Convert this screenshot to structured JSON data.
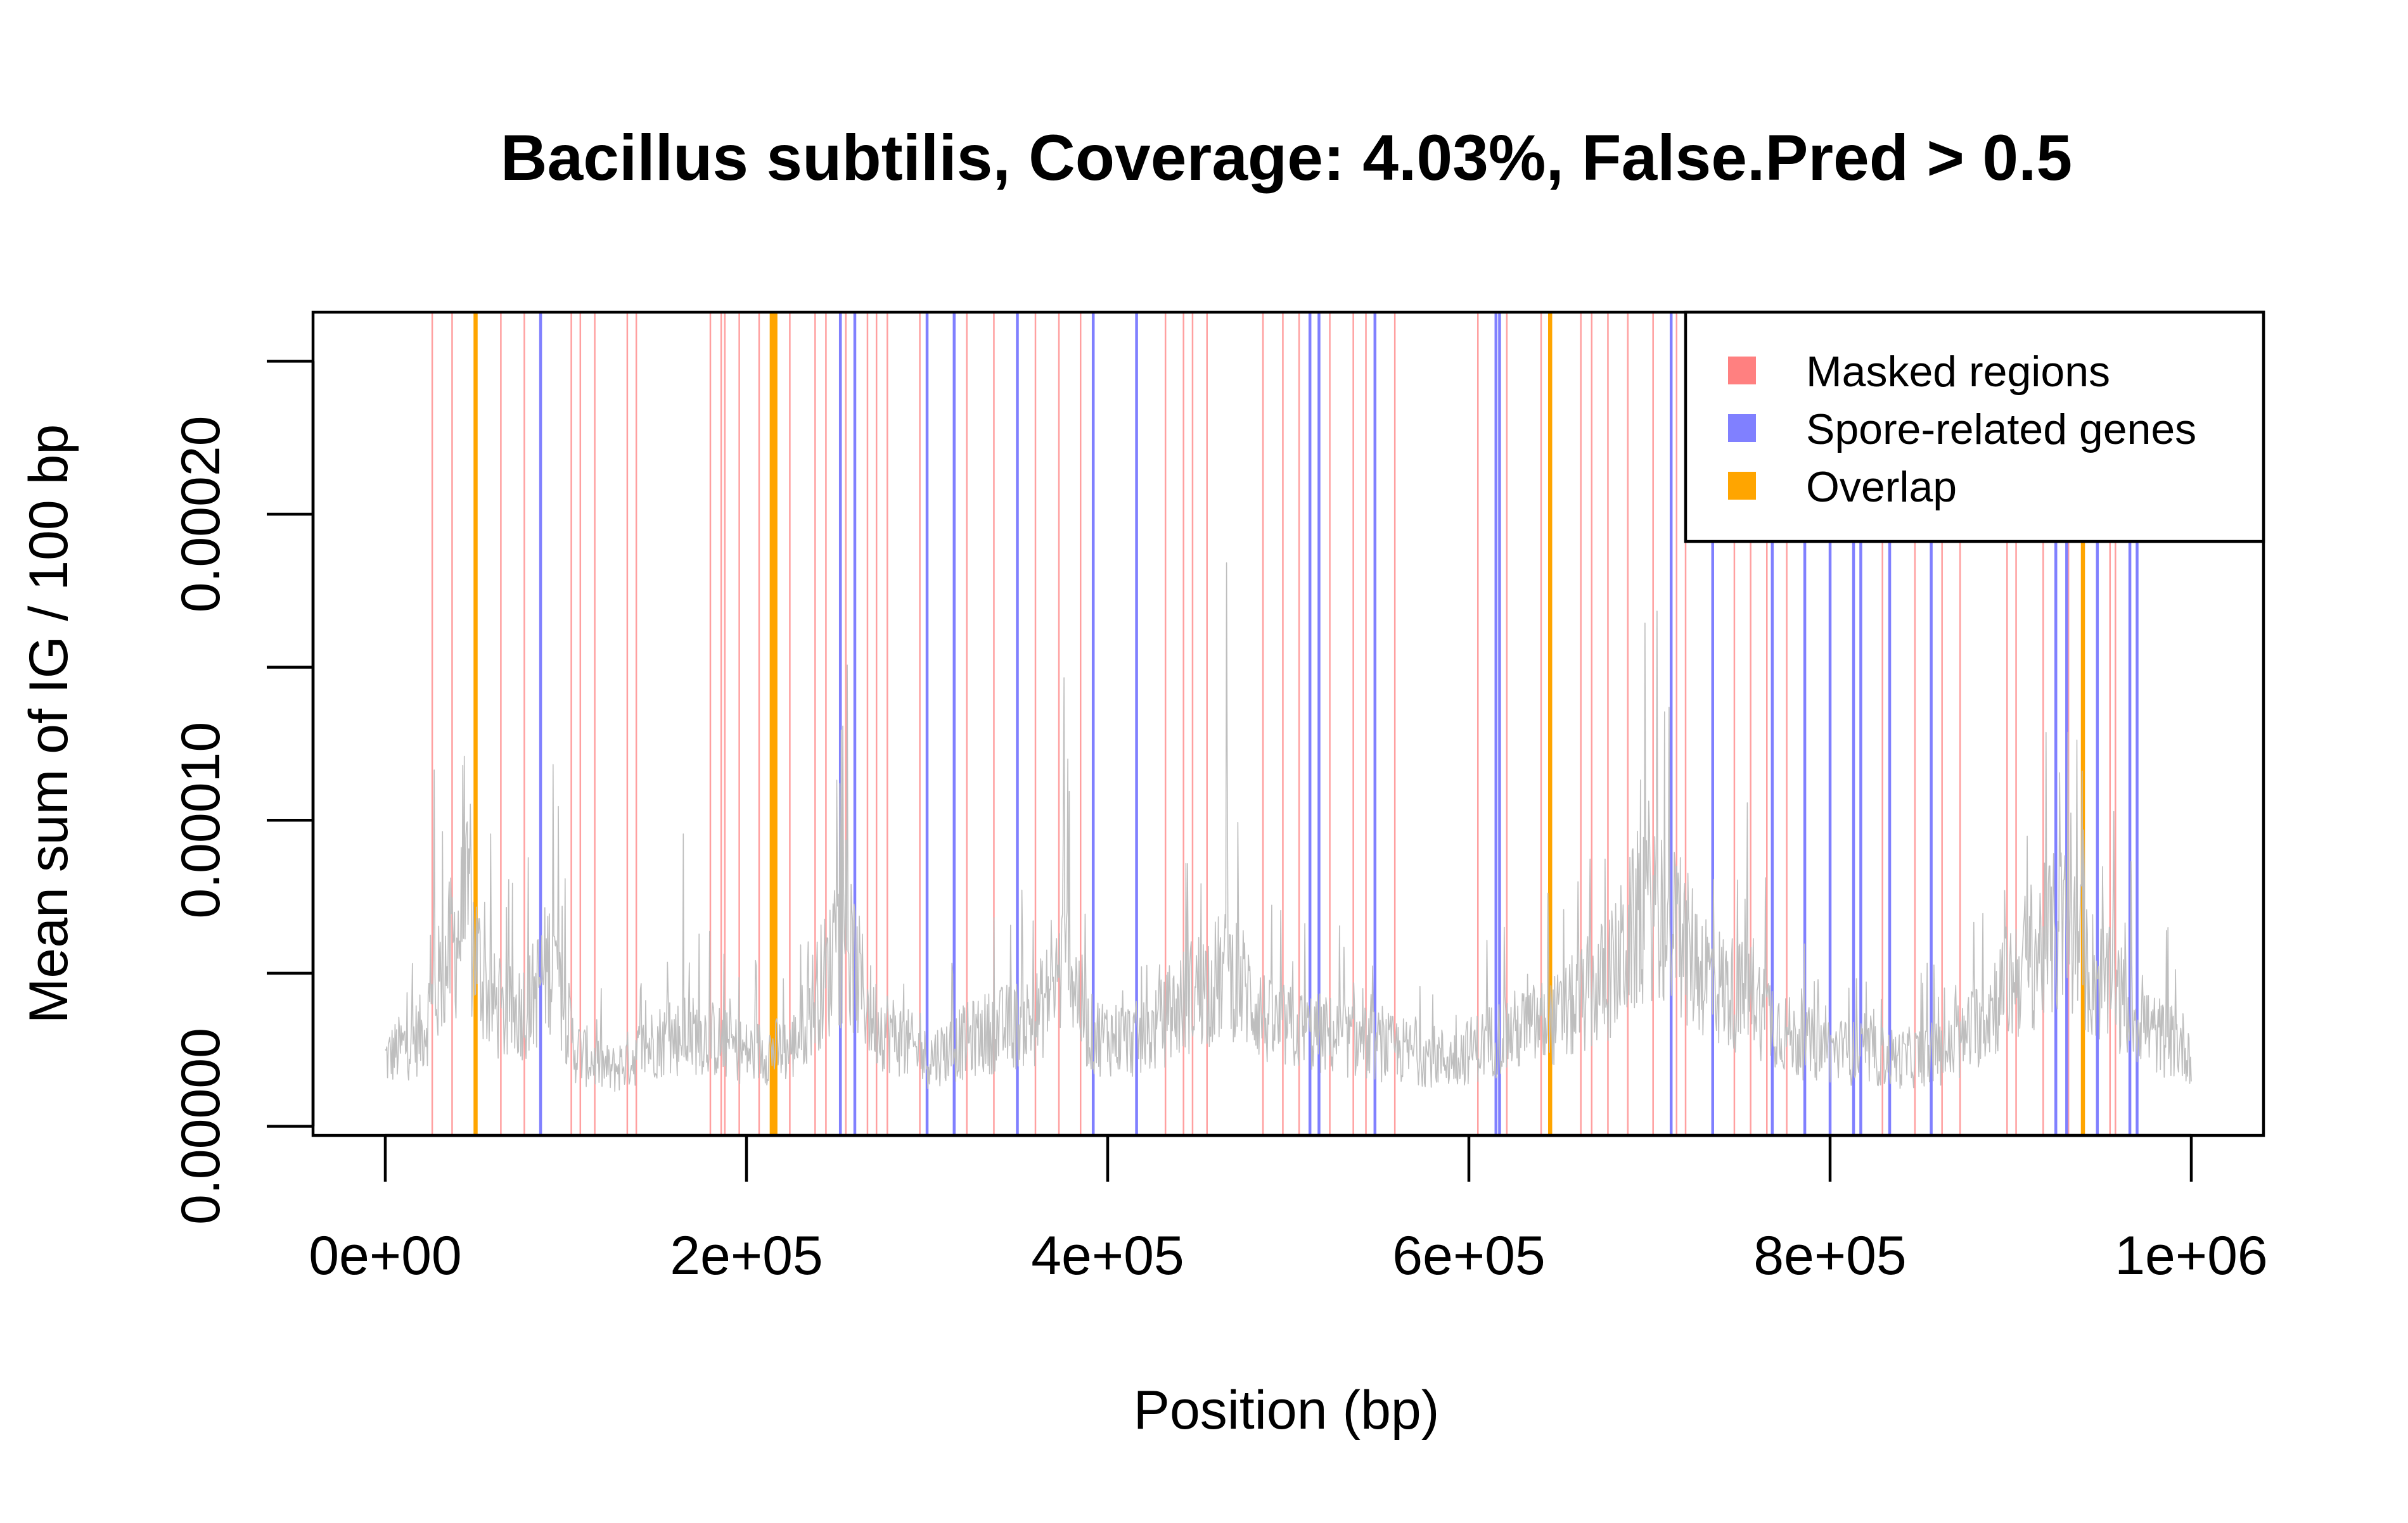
{
  "chart_data": {
    "type": "line",
    "title": "Bacillus subtilis, Coverage: 4.03%, False.Pred > 0.5",
    "xlabel": "Position (bp)",
    "ylabel": "Mean sum of IG / 100 bp",
    "xlim": [
      -40000,
      1040000
    ],
    "ylim": [
      -3e-06,
      0.000266
    ],
    "x_ticks": [
      0,
      200000,
      400000,
      600000,
      800000,
      1000000
    ],
    "x_tick_labels": [
      "0e+00",
      "2e+05",
      "4e+05",
      "6e+05",
      "8e+05",
      "1e+06"
    ],
    "y_ticks": [
      0,
      5e-05,
      0.0001,
      0.00015,
      0.0002,
      0.00025
    ],
    "y_tick_labels": [
      "0.00000",
      "",
      "0.00010",
      "",
      "0.00020",
      ""
    ],
    "grid": false,
    "legend": {
      "placement": "top-right",
      "entries": [
        {
          "label": "Masked regions",
          "color": "#ff8080"
        },
        {
          "label": "Spore-related genes",
          "color": "#8080ff"
        },
        {
          "label": "Overlap",
          "color": "#ffa500"
        }
      ]
    },
    "signal": {
      "color": "#bebebe",
      "profile": [
        [
          0,
          2.2e-05
        ],
        [
          20000,
          3e-05
        ],
        [
          35000,
          5.5e-05
        ],
        [
          45000,
          7e-05
        ],
        [
          55000,
          4.5e-05
        ],
        [
          65000,
          3.5e-05
        ],
        [
          80000,
          4e-05
        ],
        [
          92000,
          5.5e-05
        ],
        [
          105000,
          2.5e-05
        ],
        [
          125000,
          1.8e-05
        ],
        [
          150000,
          2.8e-05
        ],
        [
          175000,
          3e-05
        ],
        [
          200000,
          2.4e-05
        ],
        [
          225000,
          2.5e-05
        ],
        [
          240000,
          4.5e-05
        ],
        [
          255000,
          6e-05
        ],
        [
          270000,
          3.5e-05
        ],
        [
          300000,
          2.2e-05
        ],
        [
          330000,
          3e-05
        ],
        [
          360000,
          3.5e-05
        ],
        [
          378000,
          5.5e-05
        ],
        [
          390000,
          3e-05
        ],
        [
          420000,
          2.8e-05
        ],
        [
          450000,
          4.5e-05
        ],
        [
          470000,
          5e-05
        ],
        [
          490000,
          3.3e-05
        ],
        [
          520000,
          3e-05
        ],
        [
          560000,
          2.5e-05
        ],
        [
          590000,
          2.2e-05
        ],
        [
          620000,
          3e-05
        ],
        [
          650000,
          3.5e-05
        ],
        [
          680000,
          5e-05
        ],
        [
          700000,
          7.5e-05
        ],
        [
          720000,
          5.8e-05
        ],
        [
          740000,
          4.5e-05
        ],
        [
          760000,
          4e-05
        ],
        [
          780000,
          2.8e-05
        ],
        [
          810000,
          2.4e-05
        ],
        [
          840000,
          2.2e-05
        ],
        [
          870000,
          2.5e-05
        ],
        [
          890000,
          4e-05
        ],
        [
          910000,
          5.5e-05
        ],
        [
          930000,
          6.5e-05
        ],
        [
          945000,
          5e-05
        ],
        [
          960000,
          4.2e-05
        ],
        [
          980000,
          3e-05
        ],
        [
          1000000,
          2.5e-05
        ]
      ],
      "peaks": [
        [
          27000,
          0.000132
        ],
        [
          47000,
          0.000122
        ],
        [
          93000,
          0.00013
        ],
        [
          165000,
          9.7e-05
        ],
        [
          248000,
          8e-05
        ],
        [
          256000,
          0.000166
        ],
        [
          376000,
          0.00017
        ],
        [
          466000,
          0.000204
        ],
        [
          704000,
          0.00017
        ],
        [
          711000,
          0.000152
        ],
        [
          754000,
          0.000108
        ],
        [
          957000,
          0.000118
        ]
      ]
    },
    "masked_regions": [
      26000,
      37000,
      64000,
      77000,
      103000,
      108000,
      116000,
      134000,
      139000,
      180000,
      186000,
      188000,
      196000,
      207000,
      224000,
      238000,
      244000,
      255000,
      267000,
      272000,
      278000,
      296000,
      322000,
      337000,
      360000,
      373000,
      385000,
      432000,
      442000,
      447000,
      455000,
      486000,
      497000,
      506000,
      523000,
      536000,
      543000,
      559000,
      605000,
      621000,
      640000,
      662000,
      668000,
      677000,
      688000,
      702000,
      715000,
      720000,
      747000,
      756000,
      765000,
      776000,
      829000,
      847000,
      862000,
      872000,
      898000,
      903000,
      918000,
      932000,
      955000,
      958000
    ],
    "spore_related_genes": [
      86000,
      252000,
      260000,
      300000,
      315000,
      350000,
      392000,
      416000,
      512000,
      517000,
      548000,
      615000,
      617000,
      712000,
      735000,
      768000,
      786000,
      800000,
      813000,
      817000,
      833000,
      856000,
      925000,
      931000,
      948000,
      966000,
      970000
    ],
    "overlap": [
      50000,
      214000,
      216000,
      645000,
      940000
    ]
  }
}
